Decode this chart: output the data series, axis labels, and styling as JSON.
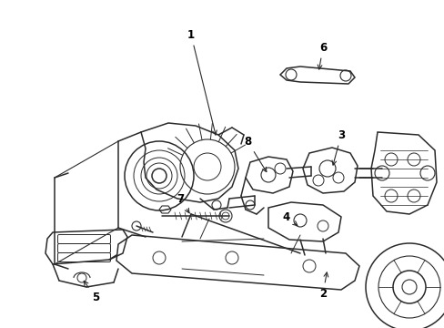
{
  "background_color": "#ffffff",
  "line_color": "#2a2a2a",
  "text_color": "#000000",
  "fig_width": 4.89,
  "fig_height": 3.6,
  "dpi": 100,
  "lw_main": 1.1,
  "lw_thin": 0.7,
  "label_fontsize": 8.5
}
